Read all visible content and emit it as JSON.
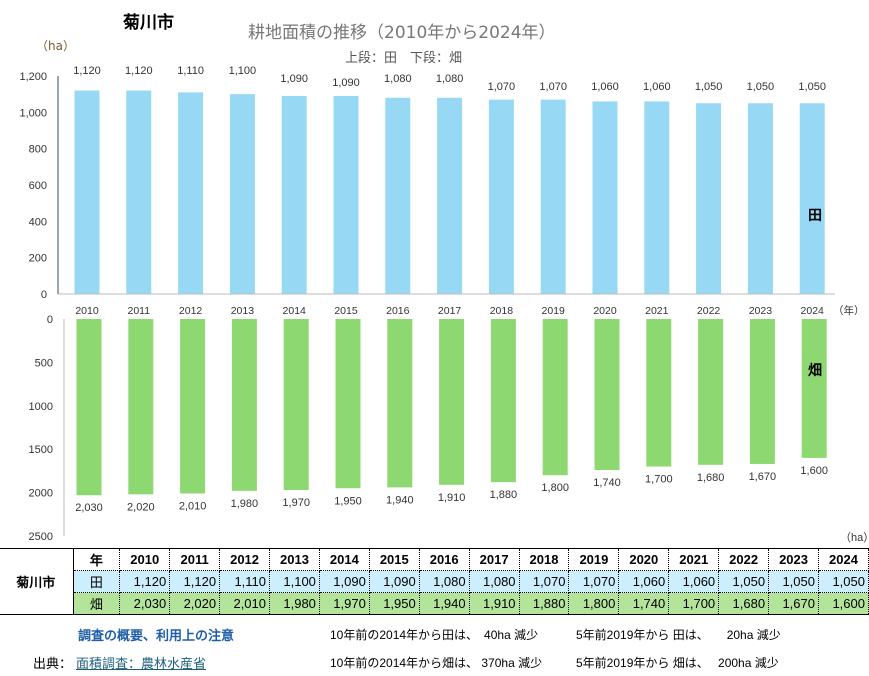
{
  "header": {
    "city": "菊川市",
    "title": "耕地面積の推移（2010年から2024年）",
    "subtitle": "上段：田　下段：畑",
    "unit": "（ha）"
  },
  "chart_data": [
    {
      "type": "bar",
      "series": [
        {
          "name": "田",
          "values": [
            1120,
            1120,
            1110,
            1100,
            1090,
            1090,
            1080,
            1080,
            1070,
            1070,
            1060,
            1060,
            1050,
            1050,
            1050
          ]
        }
      ],
      "categories": [
        "2010",
        "2011",
        "2012",
        "2013",
        "2014",
        "2015",
        "2016",
        "2017",
        "2018",
        "2019",
        "2020",
        "2021",
        "2022",
        "2023",
        "2024"
      ],
      "ylim": [
        0,
        1200
      ],
      "yticks": [
        "0",
        "200",
        "400",
        "600",
        "800",
        "1,000",
        "1,200"
      ],
      "ylabel": "（ha）",
      "xlabel": "（年）",
      "color": "#97d9f5"
    },
    {
      "type": "bar",
      "orientation": "downward",
      "series": [
        {
          "name": "畑",
          "values": [
            2030,
            2020,
            2010,
            1980,
            1970,
            1950,
            1940,
            1910,
            1880,
            1800,
            1740,
            1700,
            1680,
            1670,
            1600
          ]
        }
      ],
      "ylim": [
        0,
        2500
      ],
      "yticks": [
        "0",
        "500",
        "1000",
        "1500",
        "2000",
        "2500"
      ],
      "ylabel": "（ha）",
      "color": "#8ed872"
    }
  ],
  "table": {
    "city": "菊川市",
    "year_label": "年",
    "ta_label": "田",
    "ha_label": "畑",
    "years": [
      "2010",
      "2011",
      "2012",
      "2013",
      "2014",
      "2015",
      "2016",
      "2017",
      "2018",
      "2019",
      "2020",
      "2021",
      "2022",
      "2023",
      "2024"
    ],
    "ta": [
      "1,120",
      "1,120",
      "1,110",
      "1,100",
      "1,090",
      "1,090",
      "1,080",
      "1,080",
      "1,070",
      "1,070",
      "1,060",
      "1,060",
      "1,050",
      "1,050",
      "1,050"
    ],
    "ha": [
      "2,030",
      "2,020",
      "2,010",
      "1,980",
      "1,970",
      "1,950",
      "1,940",
      "1,910",
      "1,880",
      "1,800",
      "1,740",
      "1,700",
      "1,680",
      "1,670",
      "1,600"
    ]
  },
  "footer": {
    "survey_link": "調査の概要、利用上の注意",
    "source_label": "出典：",
    "source_link": "面積調査：農林水産省",
    "note1": "10年前の2014年から田は、　40ha 減少",
    "note2": "5年前2019年から 田は、　　20ha 減少",
    "note3": "10年前の2014年から畑は、 370ha 減少",
    "note4": "5年前2019年から 畑は、　 200ha 減少"
  }
}
